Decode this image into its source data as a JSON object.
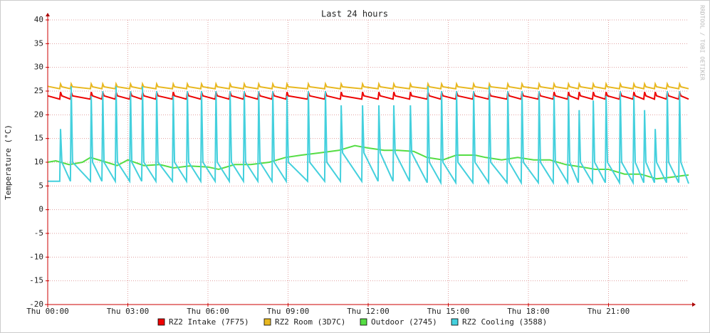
{
  "chart_data": {
    "type": "line",
    "title": "Last 24 hours",
    "y_label": "Temperature (°C)",
    "watermark": "RRDTOOL / TOBI OETIKER",
    "xlim": [
      0,
      24
    ],
    "ylim": [
      -20,
      40
    ],
    "yticks": [
      -20,
      -15,
      -10,
      -5,
      0,
      5,
      10,
      15,
      20,
      25,
      30,
      35,
      40
    ],
    "xticks": [
      {
        "value": 0,
        "label": "Thu 00:00"
      },
      {
        "value": 3,
        "label": "Thu 03:00"
      },
      {
        "value": 6,
        "label": "Thu 06:00"
      },
      {
        "value": 9,
        "label": "Thu 09:00"
      },
      {
        "value": 12,
        "label": "Thu 12:00"
      },
      {
        "value": 15,
        "label": "Thu 15:00"
      },
      {
        "value": 18,
        "label": "Thu 18:00"
      },
      {
        "value": 21,
        "label": "Thu 21:00"
      }
    ],
    "grid": true,
    "x": [
      0,
      0.45,
      0.48,
      0.53,
      0.85,
      0.88,
      0.93,
      1.6,
      1.63,
      1.68,
      2.03,
      2.06,
      2.11,
      2.53,
      2.56,
      2.61,
      3.07,
      3.1,
      3.15,
      3.52,
      3.55,
      3.6,
      4.05,
      4.08,
      4.13,
      4.67,
      4.7,
      4.75,
      5.2,
      5.23,
      5.28,
      5.73,
      5.76,
      5.81,
      6.27,
      6.3,
      6.35,
      6.8,
      6.83,
      6.88,
      7.33,
      7.36,
      7.41,
      7.87,
      7.9,
      7.95,
      8.4,
      8.43,
      8.48,
      8.93,
      8.96,
      9.01,
      9.73,
      9.76,
      9.81,
      10.37,
      10.4,
      10.45,
      10.96,
      10.99,
      11.04,
      11.76,
      11.79,
      11.84,
      12.37,
      12.4,
      12.45,
      12.93,
      12.96,
      13.01,
      13.55,
      13.58,
      13.63,
      14.21,
      14.24,
      14.29,
      14.72,
      14.75,
      14.8,
      15.28,
      15.31,
      15.36,
      15.92,
      15.95,
      16,
      16.51,
      16.54,
      16.59,
      17.2,
      17.23,
      17.28,
      17.73,
      17.76,
      17.81,
      18.37,
      18.4,
      18.45,
      18.93,
      18.96,
      19.01,
      19.47,
      19.5,
      19.55,
      19.87,
      19.9,
      19.95,
      20.4,
      20.43,
      20.48,
      20.88,
      20.91,
      20.96,
      21.41,
      21.44,
      21.49,
      21.92,
      21.95,
      22,
      22.32,
      22.35,
      22.4,
      22.72,
      22.75,
      22.8,
      23.17,
      23.2,
      23.25,
      23.63,
      23.66,
      23.71,
      24
    ],
    "series": [
      {
        "name": "RZ2 Intake (7F75)",
        "color": "#ee0000",
        "values": [
          24,
          23.3,
          24.8,
          24,
          23.3,
          24.8,
          24,
          23.3,
          24.8,
          24,
          23.3,
          24.8,
          24,
          23.3,
          24.8,
          24,
          23.3,
          24.8,
          24,
          23.3,
          24.8,
          24,
          23.3,
          24.8,
          24,
          23.3,
          24.8,
          24,
          23.3,
          24.8,
          24,
          23.3,
          24.8,
          24,
          23.3,
          24.8,
          24,
          23.3,
          24.8,
          24,
          23.3,
          24.8,
          24,
          23.3,
          24.8,
          24,
          23.3,
          24.8,
          24,
          23.3,
          24.8,
          24,
          23.3,
          24.8,
          24,
          23.3,
          24.8,
          24,
          23.3,
          24.8,
          24,
          23.3,
          24.8,
          24,
          23.3,
          24.8,
          24,
          23.3,
          24.8,
          24,
          23.3,
          24.8,
          24,
          23.3,
          24.8,
          24,
          23.3,
          24.8,
          24,
          23.3,
          24.8,
          24,
          23.3,
          24.8,
          24,
          23.3,
          24.8,
          24,
          23.3,
          24.8,
          24,
          23.3,
          24.8,
          24,
          23.3,
          24.8,
          24,
          23.3,
          24.8,
          24,
          23.3,
          24.8,
          24,
          23.3,
          24.8,
          24,
          23.3,
          24.8,
          24,
          23.3,
          24.8,
          24,
          23.3,
          24.8,
          24,
          23.3,
          24.8,
          24,
          23.3,
          24.8,
          24,
          23.3,
          24.8,
          24,
          23.3,
          24.8,
          24,
          23.3,
          24.8,
          24,
          23.3
        ]
      },
      {
        "name": "RZ2 Room (3D7C)",
        "color": "#e8b820",
        "values": [
          26,
          25.5,
          26.5,
          25.9,
          25.5,
          26.5,
          25.9,
          25.5,
          26.5,
          25.9,
          25.5,
          26.5,
          25.9,
          25.5,
          26.5,
          25.9,
          25.5,
          26.5,
          25.9,
          25.5,
          26.5,
          25.9,
          25.5,
          26.5,
          25.9,
          25.5,
          26.5,
          25.9,
          25.5,
          26.5,
          25.9,
          25.5,
          26.5,
          25.9,
          25.5,
          26.5,
          25.9,
          25.5,
          26.5,
          25.9,
          25.5,
          26.5,
          25.9,
          25.5,
          26.5,
          25.9,
          25.5,
          26.5,
          25.9,
          25.5,
          26.5,
          25.9,
          25.5,
          26.5,
          25.9,
          25.5,
          26.5,
          25.9,
          25.5,
          26.5,
          25.9,
          25.5,
          26.5,
          25.9,
          25.5,
          26.5,
          25.9,
          25.5,
          26.5,
          25.9,
          25.5,
          26.5,
          25.9,
          25.5,
          26.5,
          25.9,
          25.5,
          26.5,
          25.9,
          25.5,
          26.5,
          25.9,
          25.5,
          26.5,
          25.9,
          25.5,
          26.5,
          25.9,
          25.5,
          26.5,
          25.9,
          25.5,
          26.5,
          25.9,
          25.5,
          26.5,
          25.9,
          25.5,
          26.5,
          25.9,
          25.5,
          26.5,
          25.9,
          25.5,
          26.5,
          25.9,
          25.5,
          26.5,
          25.9,
          25.5,
          26.5,
          25.9,
          25.5,
          26.5,
          25.9,
          25.5,
          26.5,
          25.9,
          25.5,
          26.5,
          25.9,
          25.5,
          26.5,
          25.9,
          25.5,
          26.5,
          25.9,
          25.5,
          26.5,
          25.9,
          25.5
        ]
      },
      {
        "name": "Outdoor (2745)",
        "color": "#55dd44",
        "x": [
          0,
          0.3,
          0.8,
          1.3,
          1.6,
          2.2,
          2.6,
          3.0,
          3.6,
          4.2,
          4.7,
          5.3,
          6.0,
          6.4,
          7.0,
          7.6,
          8.3,
          8.9,
          9.5,
          10.2,
          10.9,
          11.5,
          12.0,
          12.6,
          13.1,
          13.7,
          14.2,
          14.8,
          15.3,
          16.0,
          16.4,
          17.0,
          17.6,
          18.2,
          18.8,
          19.4,
          20.0,
          20.5,
          21.0,
          21.6,
          22.2,
          22.8,
          23.3,
          23.8,
          24
        ],
        "values": [
          10,
          10.3,
          9.5,
          10,
          11,
          10,
          9.3,
          10.5,
          9.3,
          9.5,
          8.8,
          9.2,
          9,
          8.5,
          9.5,
          9.5,
          10,
          11,
          11.5,
          12,
          12.5,
          13.5,
          13,
          12.5,
          12.5,
          12.3,
          11,
          10.5,
          11.5,
          11.5,
          11,
          10.5,
          11,
          10.5,
          10.5,
          9.5,
          9,
          8.5,
          8.5,
          7.5,
          7.5,
          6.5,
          6.8,
          7.2,
          7.3
        ]
      },
      {
        "name": "RZ2 Cooling (3588)",
        "color": "#44d0dd",
        "values": [
          6,
          6,
          17,
          10,
          6,
          26,
          10,
          6,
          24,
          10,
          6,
          25,
          10,
          6,
          26,
          10,
          6,
          25,
          10,
          6,
          26,
          10,
          6,
          25,
          10,
          6,
          24,
          10,
          6,
          25,
          10,
          6,
          25,
          10,
          6,
          25,
          10,
          6,
          25,
          10,
          6,
          25,
          10,
          6,
          25,
          10,
          6,
          25,
          10,
          6,
          24,
          10,
          6,
          25,
          10,
          6,
          25,
          10,
          6,
          22,
          12,
          6,
          22,
          12,
          6,
          22,
          12,
          6,
          22,
          12,
          6,
          22,
          12,
          5.7,
          26,
          10,
          5.7,
          25,
          10,
          5.7,
          25,
          10,
          5.7,
          25,
          10,
          5.7,
          26,
          10,
          5.7,
          25,
          10,
          5.7,
          25,
          10,
          5.7,
          25,
          10,
          5.7,
          24,
          10,
          5.7,
          24,
          10,
          5.7,
          21,
          10,
          5.7,
          23,
          10,
          5.7,
          24,
          10,
          5.7,
          25,
          10,
          5.7,
          24,
          10,
          5.7,
          21,
          10,
          5.7,
          17,
          10,
          5.7,
          25,
          10,
          5.7,
          25,
          10,
          5.5
        ]
      }
    ]
  }
}
